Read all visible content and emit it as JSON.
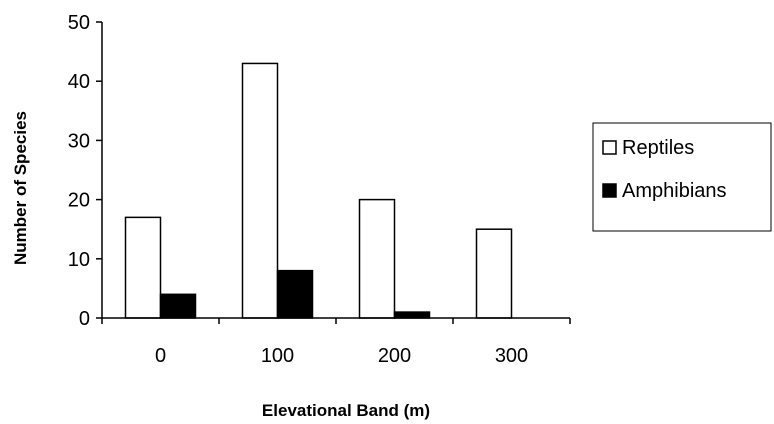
{
  "chart_data": {
    "type": "bar",
    "title": "",
    "xlabel": "Elevational Band (m)",
    "ylabel": "Number of Species",
    "categories": [
      "0",
      "100",
      "200",
      "300"
    ],
    "series": [
      {
        "name": "Reptiles",
        "values": [
          17,
          43,
          20,
          15
        ],
        "color": "#ffffff"
      },
      {
        "name": "Amphibians",
        "values": [
          4,
          8,
          1,
          0
        ],
        "color": "#000000"
      }
    ],
    "ylim": [
      0,
      50
    ],
    "yticks": [
      0,
      10,
      20,
      30,
      40,
      50
    ],
    "grid": false,
    "legend_position": "right"
  }
}
